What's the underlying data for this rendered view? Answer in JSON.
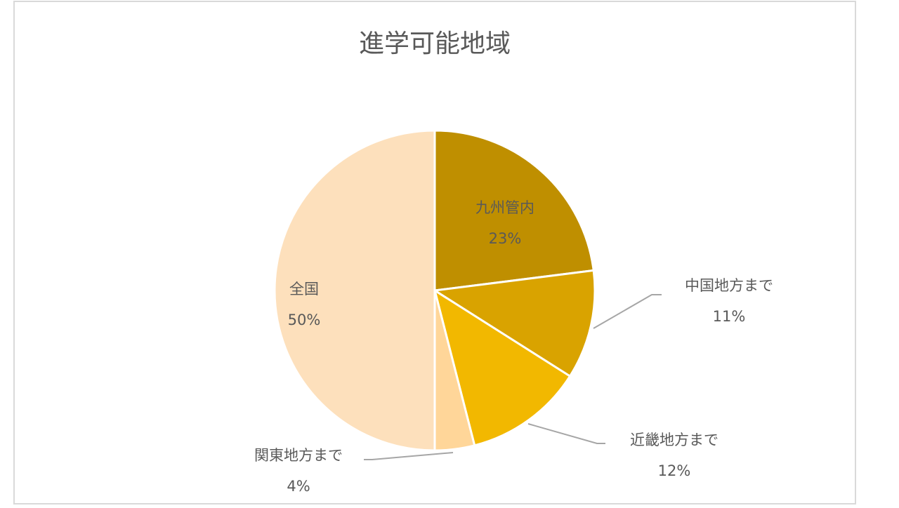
{
  "chart_data": {
    "type": "pie",
    "title": "進学可能地域",
    "categories": [
      "九州管内",
      "中国地方まで",
      "近畿地方まで",
      "関東地方まで",
      "全国"
    ],
    "values": [
      23,
      11,
      12,
      4,
      50
    ],
    "value_labels": [
      "23%",
      "11%",
      "12%",
      "4%",
      "50%"
    ],
    "colors": [
      "#bf8f00",
      "#d9a300",
      "#f2b800",
      "#ffd699",
      "#fde0bc"
    ]
  }
}
